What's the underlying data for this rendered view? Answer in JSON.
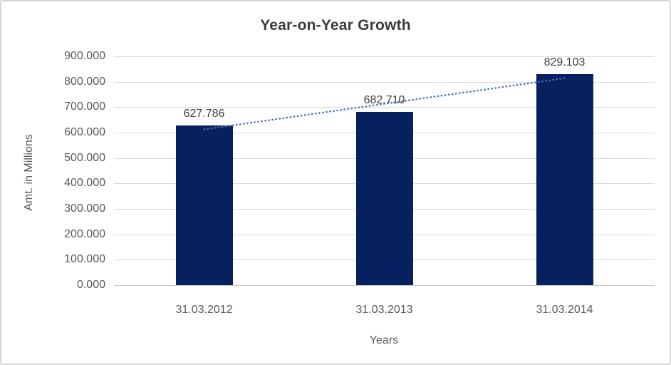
{
  "chart_data": {
    "type": "bar",
    "title": "Year-on-Year Growth",
    "xlabel": "Years",
    "ylabel": "Amt. in Millions",
    "categories": [
      "31.03.2012",
      "31.03.2013",
      "31.03.2014"
    ],
    "values": [
      627786,
      682710,
      829103
    ],
    "data_labels": [
      "627.786",
      "682.710",
      "829.103"
    ],
    "y_ticks": [
      "0.000",
      "100.000",
      "200.000",
      "300.000",
      "400.000",
      "500.000",
      "600.000",
      "700.000",
      "800.000",
      "900.000"
    ],
    "ylim": [
      0,
      900000
    ],
    "grid": true,
    "legend": "none",
    "trendline": {
      "type": "linear",
      "style": "dotted"
    },
    "colors": {
      "bar": "#072160",
      "trendline": "#4472C4",
      "gridline": "#D9D9D9",
      "axis_line": "#C8C8C8",
      "title_text": "#3B3B3B",
      "axis_text": "#595959",
      "data_label_text": "#404040",
      "border": "#D6D6D6",
      "background": "#FFFFFF"
    }
  }
}
